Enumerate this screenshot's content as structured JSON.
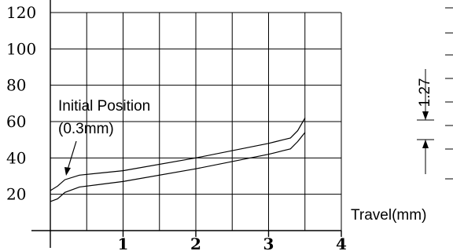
{
  "chart_data": {
    "type": "line",
    "xlabel": "Travel(mm)",
    "ylabel": "",
    "x_ticks": [
      "1",
      "2",
      "3",
      "4"
    ],
    "y_ticks": [
      "20",
      "40",
      "60",
      "80",
      "100",
      "120"
    ],
    "xlim": [
      0,
      4
    ],
    "ylim": [
      0,
      120
    ],
    "grid": true,
    "series": [
      {
        "x": [
          0,
          0.1,
          0.2,
          0.4,
          1,
          2,
          3,
          3.1,
          3.2,
          3.3,
          3.4,
          3.5
        ],
        "y": [
          22,
          24.5,
          28,
          30.5,
          33,
          40,
          48,
          49,
          50,
          51,
          55,
          62
        ]
      },
      {
        "x": [
          0,
          0.1,
          0.2,
          0.4,
          1,
          2,
          3,
          3.1,
          3.2,
          3.3,
          3.4,
          3.5
        ],
        "y": [
          16,
          17.5,
          21,
          24,
          27,
          34,
          42,
          43,
          44,
          45,
          49,
          54
        ]
      }
    ],
    "annotation": {
      "line1": "Initial Position",
      "line2": "(0.3mm)"
    },
    "side_dimension": "1.27"
  }
}
